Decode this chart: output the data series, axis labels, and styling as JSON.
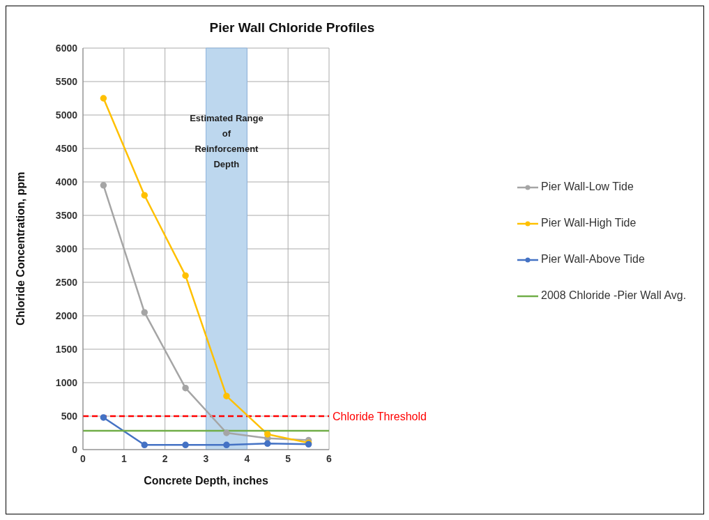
{
  "chart_data": {
    "type": "line",
    "title": "Pier Wall Chloride Profiles",
    "xlabel": "Concrete Depth, inches",
    "ylabel": "Chloride Concentration, ppm",
    "series": [
      {
        "name": "Pier Wall-Low Tide",
        "color": "#a5a5a5",
        "marker": "circle",
        "x": [
          0.5,
          1.5,
          2.5,
          3.5,
          4.5,
          5.5
        ],
        "values": [
          3950,
          2050,
          920,
          250,
          170,
          140
        ]
      },
      {
        "name": "Pier Wall-High Tide",
        "color": "#ffc000",
        "marker": "circle",
        "x": [
          0.5,
          1.5,
          2.5,
          3.5,
          4.5,
          5.5
        ],
        "values": [
          5250,
          3800,
          2600,
          800,
          230,
          100
        ]
      },
      {
        "name": "Pier Wall-Above Tide",
        "color": "#4472c4",
        "marker": "circle",
        "x": [
          0.5,
          1.5,
          2.5,
          3.5,
          4.5,
          5.5
        ],
        "values": [
          480,
          70,
          70,
          70,
          90,
          80
        ]
      },
      {
        "name": "2008 Chloride -Pier Wall Avg.",
        "color": "#70ad47",
        "marker": "none",
        "x": [
          0,
          6
        ],
        "values": [
          280,
          280
        ]
      }
    ],
    "xlim": [
      0,
      6
    ],
    "xticks": [
      0,
      1,
      2,
      3,
      4,
      5,
      6
    ],
    "ylim": [
      0,
      6000
    ],
    "yticks": [
      0,
      500,
      1000,
      1500,
      2000,
      2500,
      3000,
      3500,
      4000,
      4500,
      5000,
      5500,
      6000
    ],
    "grid": true,
    "legend": "right",
    "ref_lines": [
      {
        "axis": "y",
        "value": 500,
        "label": "Chloride Threshold",
        "color": "#ff0000",
        "line_style": "dashed"
      }
    ],
    "bands": [
      {
        "axis": "x",
        "from": 3,
        "to": 4,
        "label": "Estimated Range of Reinforcement Depth",
        "color": "#bdd7ee"
      }
    ]
  }
}
